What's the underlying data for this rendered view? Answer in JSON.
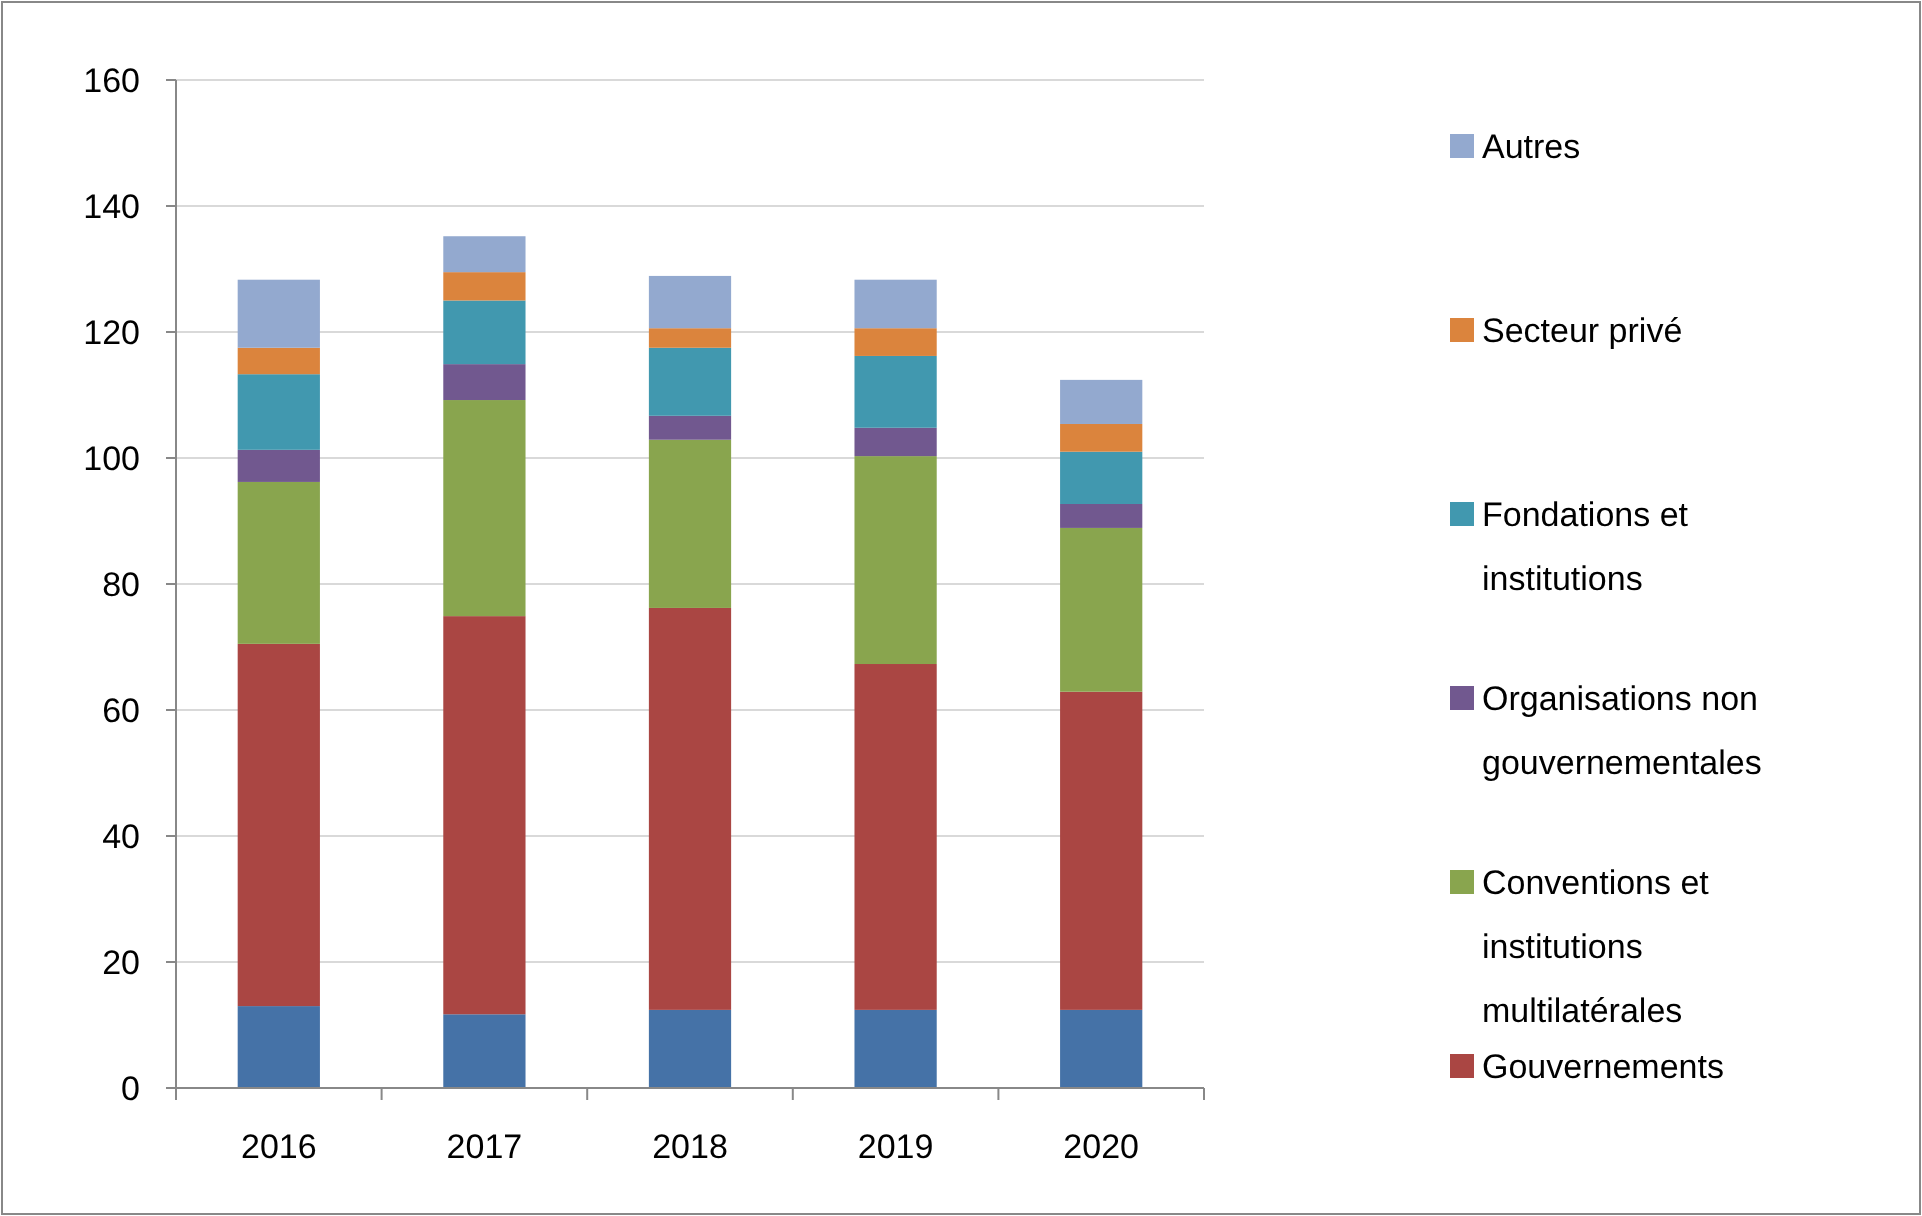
{
  "chart_data": {
    "type": "bar",
    "stacked": true,
    "categories": [
      "2016",
      "2017",
      "2018",
      "2019",
      "2020"
    ],
    "series": [
      {
        "color": "#4572a7",
        "values": [
          13,
          11.7,
          12.4,
          12.4,
          12.4
        ]
      },
      {
        "name": "Gouvernements",
        "color": "#aa4643",
        "values": [
          57.5,
          63.2,
          63.8,
          54.9,
          50.5
        ]
      },
      {
        "name": "Conventions et institutions multilatérales",
        "color": "#89a54e",
        "values": [
          25.7,
          34.3,
          26.7,
          33,
          26
        ]
      },
      {
        "name": "Organisations non gouvernementales",
        "color": "#71588f",
        "values": [
          5.1,
          5.7,
          3.8,
          4.5,
          3.8
        ]
      },
      {
        "name": "Fondations et institutions",
        "color": "#4198af",
        "values": [
          12,
          10.1,
          10.8,
          11.4,
          8.3
        ]
      },
      {
        "name": "Secteur privé",
        "color": "#db843d",
        "values": [
          4.2,
          4.5,
          3.1,
          4.4,
          4.4
        ]
      },
      {
        "name": "Autres",
        "color": "#93a9cf",
        "values": [
          10.8,
          5.7,
          8.3,
          7.7,
          7
        ]
      }
    ],
    "ylim": [
      0,
      160
    ],
    "yticks": [
      0,
      20,
      40,
      60,
      80,
      100,
      120,
      140,
      160
    ],
    "grid": "y",
    "legend": "right"
  }
}
